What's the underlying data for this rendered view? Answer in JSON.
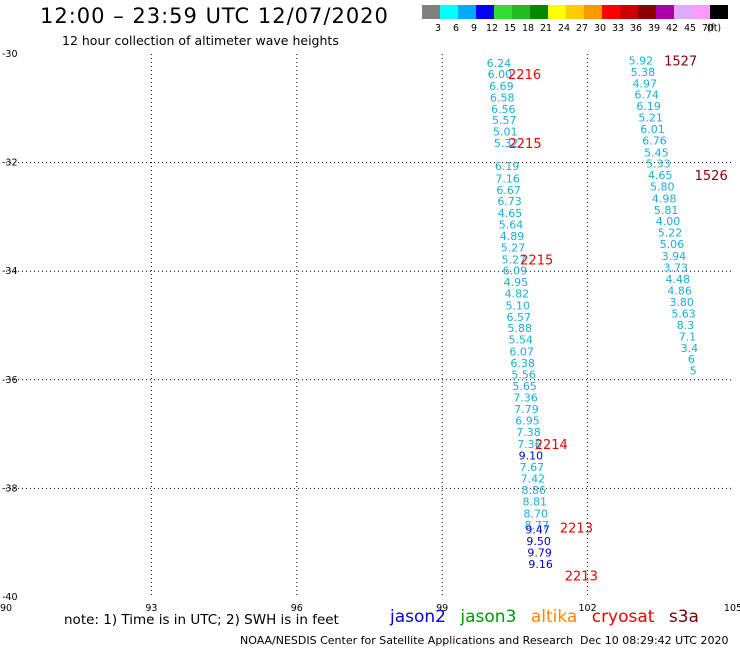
{
  "header": {
    "title": "12:00 – 23:59 UTC 12/07/2020",
    "subtitle": "12 hour collection of altimeter wave heights"
  },
  "colorbar": {
    "unit": "(ft)",
    "labels": [
      "3",
      "6",
      "9",
      "12",
      "15",
      "18",
      "21",
      "24",
      "27",
      "30",
      "33",
      "36",
      "39",
      "42",
      "45",
      "70"
    ],
    "colors": [
      "#808080",
      "#00ffff",
      "#00aaff",
      "#0000ff",
      "#33dd33",
      "#22bb22",
      "#008800",
      "#ffff00",
      "#ffcc00",
      "#ff9900",
      "#ff0000",
      "#cc0000",
      "#880000",
      "#aa00aa",
      "#ddaaff",
      "#ff99ff",
      "#000000"
    ]
  },
  "map": {
    "lon_ticks": [
      {
        "value": 90,
        "label": "90"
      },
      {
        "value": 93,
        "label": "93"
      },
      {
        "value": 96,
        "label": "96"
      },
      {
        "value": 99,
        "label": "99"
      },
      {
        "value": 102,
        "label": "102"
      },
      {
        "value": 105,
        "label": "105"
      }
    ],
    "lat_ticks": [
      {
        "value": -30,
        "label": "-30"
      },
      {
        "value": -32,
        "label": "-32"
      },
      {
        "value": -34,
        "label": "-34"
      },
      {
        "value": -36,
        "label": "-36"
      },
      {
        "value": -38,
        "label": "-38"
      },
      {
        "value": -40,
        "label": "-40"
      }
    ],
    "lon_range": [
      90,
      105
    ],
    "lat_range": [
      -30,
      -40
    ],
    "grid": true,
    "track_a": {
      "color": "#1aaed6",
      "points": [
        {
          "lon": 100.17,
          "lat": -30.17,
          "v": "6.24"
        },
        {
          "lon": 100.19,
          "lat": -30.37,
          "v": "6.00"
        },
        {
          "lon": 100.22,
          "lat": -30.59,
          "v": "6.69"
        },
        {
          "lon": 100.24,
          "lat": -30.8,
          "v": "6.58"
        },
        {
          "lon": 100.26,
          "lat": -31.01,
          "v": "6.56"
        },
        {
          "lon": 100.28,
          "lat": -31.22,
          "v": "5.57"
        },
        {
          "lon": 100.3,
          "lat": -31.43,
          "v": "5.01"
        },
        {
          "lon": 100.32,
          "lat": -31.64,
          "v": "5.32"
        },
        {
          "lon": 100.34,
          "lat": -32.06,
          "v": "6.19"
        },
        {
          "lon": 100.35,
          "lat": -32.29,
          "v": "7.16"
        },
        {
          "lon": 100.37,
          "lat": -32.5,
          "v": "6.67"
        },
        {
          "lon": 100.39,
          "lat": -32.71,
          "v": "6.73"
        },
        {
          "lon": 100.4,
          "lat": -32.93,
          "v": "4.65"
        },
        {
          "lon": 100.42,
          "lat": -33.14,
          "v": "5.64"
        },
        {
          "lon": 100.44,
          "lat": -33.35,
          "v": "4.89"
        },
        {
          "lon": 100.46,
          "lat": -33.56,
          "v": "5.27"
        },
        {
          "lon": 100.48,
          "lat": -33.78,
          "v": "5.27"
        },
        {
          "lon": 100.5,
          "lat": -33.99,
          "v": "6.09"
        },
        {
          "lon": 100.52,
          "lat": -34.2,
          "v": "4.95"
        },
        {
          "lon": 100.54,
          "lat": -34.41,
          "v": "4.82"
        },
        {
          "lon": 100.56,
          "lat": -34.63,
          "v": "5.10"
        },
        {
          "lon": 100.58,
          "lat": -34.84,
          "v": "6.57"
        },
        {
          "lon": 100.6,
          "lat": -35.05,
          "v": "5.88"
        },
        {
          "lon": 100.62,
          "lat": -35.26,
          "v": "5.54"
        },
        {
          "lon": 100.64,
          "lat": -35.48,
          "v": "6.07"
        },
        {
          "lon": 100.66,
          "lat": -35.69,
          "v": "6.38"
        },
        {
          "lon": 100.68,
          "lat": -35.9,
          "v": "5.56"
        },
        {
          "lon": 100.7,
          "lat": -36.11,
          "v": "5.65"
        },
        {
          "lon": 100.72,
          "lat": -36.33,
          "v": "7.36"
        },
        {
          "lon": 100.74,
          "lat": -36.54,
          "v": "7.79"
        },
        {
          "lon": 100.76,
          "lat": -36.75,
          "v": "6.95"
        },
        {
          "lon": 100.78,
          "lat": -36.96,
          "v": "7.38"
        },
        {
          "lon": 100.8,
          "lat": -37.18,
          "v": "7.36"
        },
        {
          "lon": 100.83,
          "lat": -37.39,
          "v": "9.10",
          "color": "#0000cc"
        },
        {
          "lon": 100.85,
          "lat": -37.61,
          "v": "7.67"
        },
        {
          "lon": 100.87,
          "lat": -37.82,
          "v": "7.42"
        },
        {
          "lon": 100.89,
          "lat": -38.03,
          "v": "8.86"
        },
        {
          "lon": 100.91,
          "lat": -38.24,
          "v": "8.81"
        },
        {
          "lon": 100.93,
          "lat": -38.46,
          "v": "8.70"
        },
        {
          "lon": 100.95,
          "lat": -38.67,
          "v": "8.77"
        },
        {
          "lon": 100.97,
          "lat": -38.76,
          "v": "9.47",
          "color": "#0000cc"
        },
        {
          "lon": 100.99,
          "lat": -38.97,
          "v": "9.50",
          "color": "#0000cc"
        },
        {
          "lon": 101.01,
          "lat": -39.18,
          "v": "9.79",
          "color": "#0000cc"
        },
        {
          "lon": 101.03,
          "lat": -39.39,
          "v": "9.16",
          "color": "#0000cc"
        }
      ],
      "time_labels": [
        {
          "lon": 100.7,
          "lat": -30.37,
          "text": "2216"
        },
        {
          "lon": 100.71,
          "lat": -31.64,
          "text": "2215"
        },
        {
          "lon": 100.95,
          "lat": -33.78,
          "text": "2215"
        },
        {
          "lon": 101.25,
          "lat": -37.18,
          "text": "2214"
        },
        {
          "lon": 101.77,
          "lat": -38.72,
          "text": "2213"
        },
        {
          "lon": 101.87,
          "lat": -39.6,
          "text": "2213"
        }
      ]
    },
    "track_b": {
      "color": "#1aaed6",
      "points": [
        {
          "lon": 103.1,
          "lat": -30.12,
          "v": "5.92"
        },
        {
          "lon": 103.14,
          "lat": -30.33,
          "v": "5.38"
        },
        {
          "lon": 103.18,
          "lat": -30.54,
          "v": "4.97"
        },
        {
          "lon": 103.22,
          "lat": -30.75,
          "v": "6.74"
        },
        {
          "lon": 103.26,
          "lat": -30.96,
          "v": "6.19"
        },
        {
          "lon": 103.3,
          "lat": -31.17,
          "v": "5.21"
        },
        {
          "lon": 103.34,
          "lat": -31.38,
          "v": "6.01"
        },
        {
          "lon": 103.38,
          "lat": -31.59,
          "v": "6.76"
        },
        {
          "lon": 103.42,
          "lat": -31.81,
          "v": "5.45"
        },
        {
          "lon": 103.46,
          "lat": -32.02,
          "v": "5.33"
        },
        {
          "lon": 103.5,
          "lat": -32.23,
          "v": "4.65"
        },
        {
          "lon": 103.54,
          "lat": -32.44,
          "v": "5.80"
        },
        {
          "lon": 103.58,
          "lat": -32.66,
          "v": "4.98"
        },
        {
          "lon": 103.62,
          "lat": -32.87,
          "v": "5.81"
        },
        {
          "lon": 103.66,
          "lat": -33.08,
          "v": "4.00"
        },
        {
          "lon": 103.7,
          "lat": -33.29,
          "v": "5.22"
        },
        {
          "lon": 103.74,
          "lat": -33.5,
          "v": "5.06"
        },
        {
          "lon": 103.78,
          "lat": -33.72,
          "v": "3.94"
        },
        {
          "lon": 103.82,
          "lat": -33.93,
          "v": "3.73"
        },
        {
          "lon": 103.86,
          "lat": -34.14,
          "v": "4.48"
        },
        {
          "lon": 103.9,
          "lat": -34.36,
          "v": "4.86"
        },
        {
          "lon": 103.94,
          "lat": -34.57,
          "v": "3.80"
        },
        {
          "lon": 103.98,
          "lat": -34.78,
          "v": "5.63"
        },
        {
          "lon": 104.02,
          "lat": -34.99,
          "v": "8.3"
        },
        {
          "lon": 104.06,
          "lat": -35.2,
          "v": "7.1"
        },
        {
          "lon": 104.1,
          "lat": -35.41,
          "v": "3.4"
        },
        {
          "lon": 104.14,
          "lat": -35.62,
          "v": "6"
        },
        {
          "lon": 104.18,
          "lat": -35.83,
          "v": "5"
        }
      ],
      "time_labels": [
        {
          "lon": 103.92,
          "lat": -30.12,
          "text": "1527"
        },
        {
          "lon": 104.55,
          "lat": -32.23,
          "text": "1526"
        }
      ]
    },
    "time_label_colors": {
      "track_a": "#ee0000",
      "track_b": "#880000"
    }
  },
  "footer": {
    "note": "note:  1) Time is in UTC; 2) SWH is in feet",
    "legend": [
      {
        "label": "jason2",
        "color": "#0000dd"
      },
      {
        "label": "jason3",
        "color": "#009900"
      },
      {
        "label": "altika",
        "color": "#ff8800"
      },
      {
        "label": "cryosat",
        "color": "#ee0000"
      },
      {
        "label": "s3a",
        "color": "#770000"
      }
    ],
    "credit": "NOAA/NESDIS Center for Satellite Applications and Research",
    "timestamp": "Dec 10 08:29:42 UTC 2020"
  }
}
